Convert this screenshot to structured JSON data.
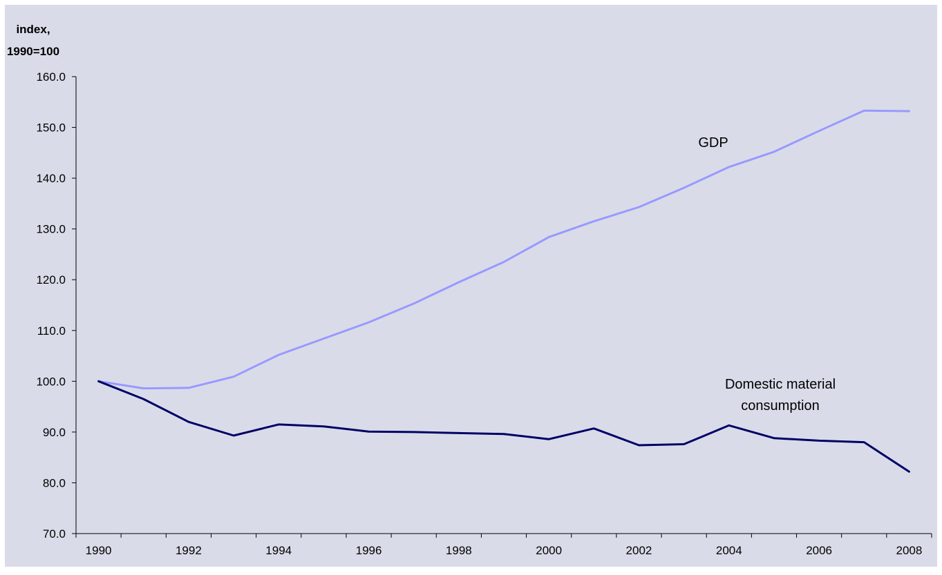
{
  "chart_data": {
    "type": "line",
    "title": "",
    "ylabel_line1": "index,",
    "ylabel_line2": "1990=100",
    "xlabel": "",
    "ylim": [
      70,
      160
    ],
    "ytick_labels": [
      "70.0",
      "80.0",
      "90.0",
      "100.0",
      "110.0",
      "120.0",
      "130.0",
      "140.0",
      "150.0",
      "160.0"
    ],
    "x": [
      1990,
      1991,
      1992,
      1993,
      1994,
      1995,
      1996,
      1997,
      1998,
      1999,
      2000,
      2001,
      2002,
      2003,
      2004,
      2005,
      2006,
      2007,
      2008
    ],
    "xtick_labels": [
      "1990",
      "1992",
      "1994",
      "1996",
      "1998",
      "2000",
      "2002",
      "2004",
      "2006",
      "2008"
    ],
    "series": [
      {
        "name": "GDP",
        "color": "#9999ff",
        "values": [
          100.0,
          98.6,
          98.7,
          100.9,
          105.2,
          108.4,
          111.6,
          115.3,
          119.5,
          123.5,
          128.4,
          131.5,
          134.3,
          138.1,
          142.2,
          145.2,
          149.3,
          153.3,
          153.2
        ]
      },
      {
        "name": "Domestic material consumption",
        "label_line1": "Domestic material",
        "label_line2": "consumption",
        "color": "#000066",
        "values": [
          100.0,
          96.5,
          92.0,
          89.3,
          91.5,
          91.1,
          90.1,
          90.0,
          89.8,
          89.6,
          88.6,
          90.7,
          87.4,
          87.6,
          91.3,
          88.8,
          88.3,
          88.0,
          82.2
        ]
      }
    ],
    "colors": {
      "background": "#ffffff",
      "plot_background": "#d9dce8",
      "axis": "#000000"
    },
    "grid": false,
    "legend": "inline-labels"
  }
}
